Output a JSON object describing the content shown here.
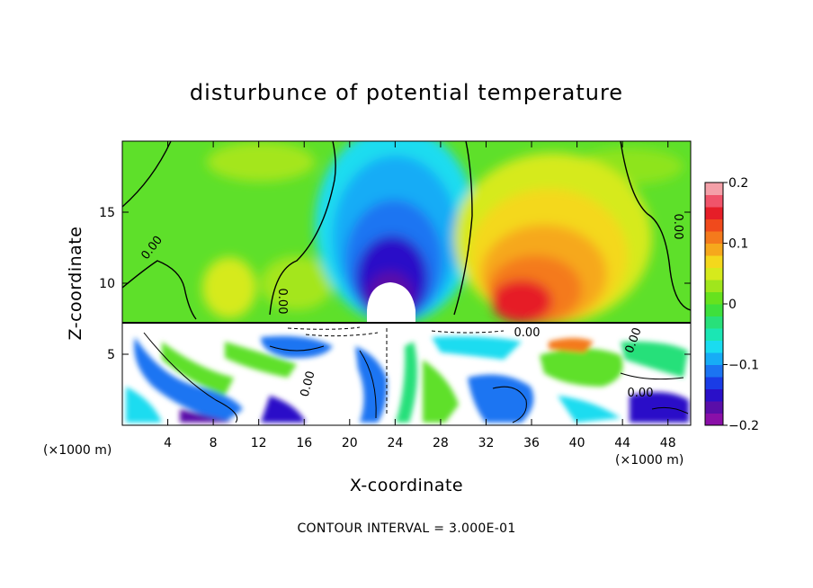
{
  "chart_data": {
    "type": "heatmap",
    "title": "disturbunce of potential temperature",
    "xlabel": "X-coordinate",
    "ylabel": "Z-coordinate",
    "x_unit_left": "(×1000 m)",
    "x_unit_right": "(×1000 m)",
    "xlim": [
      0,
      50
    ],
    "ylim": [
      0,
      20
    ],
    "x_ticks": [
      4,
      8,
      12,
      16,
      20,
      24,
      28,
      32,
      36,
      40,
      44,
      48
    ],
    "y_ticks": [
      5,
      10,
      15
    ],
    "colorbar": {
      "min": -0.2,
      "max": 0.2,
      "tick_values": [
        0.2,
        0.1,
        0,
        -0.1,
        -0.2
      ],
      "tick_labels": [
        "0.2",
        "0.1",
        "0",
        "−0.1",
        "−0.2"
      ],
      "colors": [
        "#8a0fa8",
        "#5a0ea8",
        "#2a10c8",
        "#1a3ce6",
        "#1b74f2",
        "#17acf6",
        "#1adcf0",
        "#1be6b4",
        "#28e07a",
        "#3ee03c",
        "#66e21e",
        "#a0e61c",
        "#d6ea1c",
        "#f4d81c",
        "#f6a81c",
        "#f47a1c",
        "#f04a1c",
        "#e61e28",
        "#f0546a",
        "#f4a0a8"
      ]
    },
    "contour_labels": [
      "0.00",
      "0.00",
      "0.00",
      "0.00",
      "0.00",
      "0.00",
      "0.00"
    ],
    "note": "CONTOUR INTERVAL = 3.000E-01"
  }
}
